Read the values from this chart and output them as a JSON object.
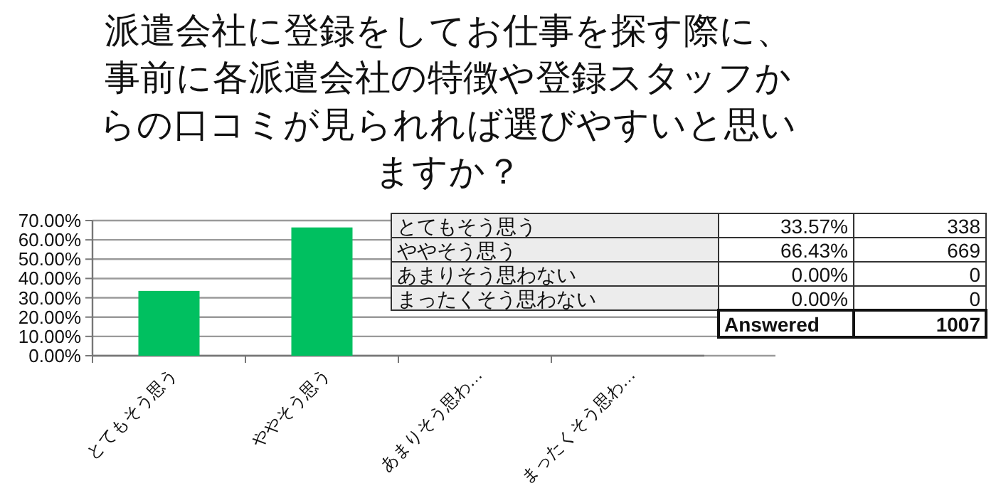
{
  "chart_data": [
    {
      "type": "bar",
      "title": "派遣会社に登録をしてお仕事を探す際に、事前に各派遣会社の特徴や登録スタッフからの口コミが見られれば選びやすいと思いますか？",
      "categories": [
        "とてもそう思う",
        "ややそう思う",
        "あまりそう思わ…",
        "まったくそう思わ…"
      ],
      "values": [
        33.57,
        66.43,
        0,
        0
      ],
      "color": "#00c060",
      "ylim": [
        0,
        70
      ],
      "yticks": [
        {
          "value": 0,
          "label": "0.00%"
        },
        {
          "value": 10,
          "label": "10.00%"
        },
        {
          "value": 20,
          "label": "20.00%"
        },
        {
          "value": 30,
          "label": "30.00%"
        },
        {
          "value": 40,
          "label": "40.00%"
        },
        {
          "value": 50,
          "label": "50.00%"
        },
        {
          "value": 60,
          "label": "60.00%"
        },
        {
          "value": 70,
          "label": "70.00%"
        }
      ],
      "grid": "y"
    },
    {
      "type": "other",
      "annotations": [
        "とてもそう思う",
        "33.57%",
        "338",
        "ややそう思う",
        "66.43%",
        "669",
        "あまりそう思わない",
        "0.00%",
        "0",
        "まったくそう思わない",
        "0.00%",
        "0",
        "Answered",
        "1007"
      ]
    }
  ]
}
